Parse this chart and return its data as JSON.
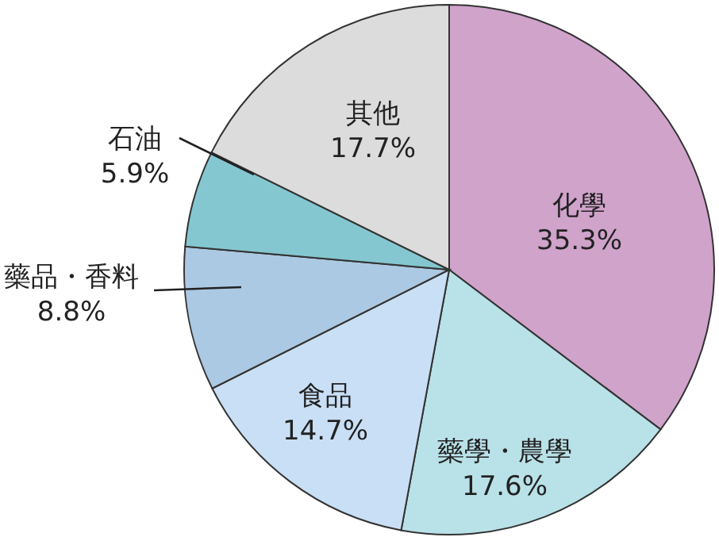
{
  "chart_data": {
    "type": "pie",
    "categories": [
      "化學",
      "藥學・農學",
      "食品",
      "藥品・香料",
      "石油",
      "其他"
    ],
    "values": [
      35.3,
      17.6,
      14.7,
      8.8,
      5.9,
      17.7
    ],
    "value_labels": [
      "35.3%",
      "17.6%",
      "14.7%",
      "8.8%",
      "5.9%",
      "17.7%"
    ],
    "colors": [
      "#d0a3cb",
      "#b9e1e8",
      "#c9dff5",
      "#acc9e3",
      "#84c7d0",
      "#dcdcdc"
    ]
  }
}
